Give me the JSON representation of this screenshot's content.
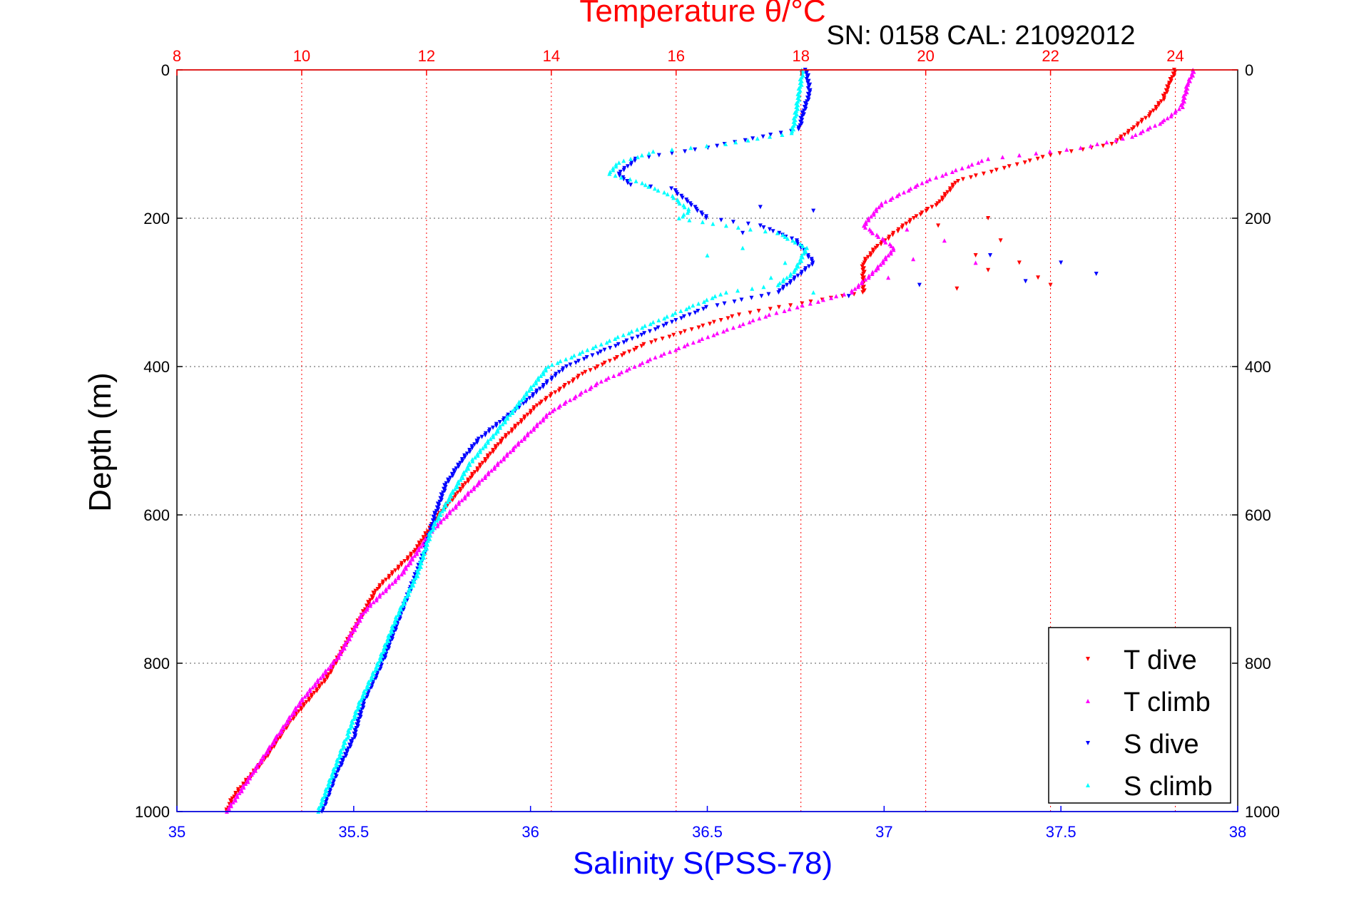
{
  "chart_data": {
    "type": "scatter",
    "title": "Temperature θ/°C",
    "subtitle": "SN: 0158  CAL: 21092012",
    "ylabel": "Depth (m)",
    "xlabel": "Salinity S(PSS-78)",
    "ylim": [
      1000,
      0
    ],
    "y_reversed": true,
    "y_ticks": [
      "0",
      "200",
      "400",
      "600",
      "800",
      "1000"
    ],
    "top_axis": {
      "label": "Temperature θ/°C",
      "range": [
        8,
        25
      ],
      "ticks": [
        "8",
        "10",
        "12",
        "14",
        "16",
        "18",
        "20",
        "22",
        "24"
      ],
      "color": "#ff0000"
    },
    "bottom_axis": {
      "label": "Salinity S(PSS-78)",
      "range": [
        35,
        38
      ],
      "ticks": [
        "35",
        "35.5",
        "36",
        "36.5",
        "37",
        "37.5",
        "38"
      ],
      "color": "#0000ff"
    },
    "grid": true,
    "legend_position": "bottom-right",
    "series": [
      {
        "name": "T dive",
        "axis": "temperature",
        "color": "#ff0000",
        "marker": "triangle-down",
        "points": [
          [
            24.0,
            0
          ],
          [
            23.9,
            20
          ],
          [
            23.8,
            40
          ],
          [
            23.6,
            60
          ],
          [
            23.3,
            80
          ],
          [
            23.0,
            100
          ],
          [
            22.0,
            115
          ],
          [
            20.5,
            150
          ],
          [
            20.2,
            180
          ],
          [
            19.8,
            200
          ],
          [
            19.5,
            220
          ],
          [
            19.2,
            240
          ],
          [
            19.0,
            260
          ],
          [
            19.0,
            300
          ],
          [
            17.0,
            330
          ],
          [
            15.5,
            370
          ],
          [
            14.5,
            410
          ],
          [
            13.8,
            450
          ],
          [
            13.2,
            500
          ],
          [
            12.7,
            550
          ],
          [
            12.2,
            600
          ],
          [
            11.8,
            650
          ],
          [
            11.2,
            700
          ],
          [
            10.8,
            760
          ],
          [
            10.4,
            820
          ],
          [
            9.8,
            880
          ],
          [
            9.4,
            930
          ],
          [
            8.9,
            980
          ],
          [
            8.8,
            1000
          ]
        ],
        "scatter": [
          [
            21.0,
            200
          ],
          [
            21.2,
            230
          ],
          [
            21.5,
            260
          ],
          [
            21.8,
            280
          ],
          [
            22.0,
            290
          ],
          [
            20.5,
            295
          ],
          [
            20.2,
            210
          ],
          [
            21.0,
            270
          ],
          [
            20.8,
            250
          ]
        ]
      },
      {
        "name": "T climb",
        "axis": "temperature",
        "color": "#ff00ff",
        "marker": "triangle-up",
        "points": [
          [
            24.3,
            0
          ],
          [
            24.2,
            20
          ],
          [
            24.1,
            50
          ],
          [
            23.8,
            70
          ],
          [
            23.3,
            90
          ],
          [
            22.5,
            105
          ],
          [
            21.0,
            120
          ],
          [
            20.0,
            150
          ],
          [
            19.3,
            180
          ],
          [
            19.0,
            210
          ],
          [
            19.5,
            240
          ],
          [
            19.2,
            270
          ],
          [
            18.8,
            300
          ],
          [
            17.5,
            330
          ],
          [
            16.5,
            360
          ],
          [
            15.6,
            390
          ],
          [
            14.8,
            420
          ],
          [
            14.0,
            460
          ],
          [
            13.4,
            510
          ],
          [
            12.8,
            560
          ],
          [
            12.1,
            620
          ],
          [
            11.6,
            680
          ],
          [
            11.0,
            730
          ],
          [
            10.6,
            790
          ],
          [
            10.0,
            850
          ],
          [
            9.6,
            900
          ],
          [
            9.2,
            950
          ],
          [
            8.8,
            1000
          ]
        ],
        "scatter": [
          [
            20.3,
            230
          ],
          [
            20.8,
            260
          ],
          [
            19.8,
            255
          ],
          [
            19.4,
            280
          ],
          [
            19.7,
            215
          ]
        ]
      },
      {
        "name": "S dive",
        "axis": "salinity",
        "color": "#0000ff",
        "marker": "triangle-down",
        "points": [
          [
            36.78,
            0
          ],
          [
            36.79,
            30
          ],
          [
            36.77,
            60
          ],
          [
            36.76,
            80
          ],
          [
            36.5,
            105
          ],
          [
            36.3,
            120
          ],
          [
            36.25,
            140
          ],
          [
            36.28,
            155
          ],
          [
            36.4,
            160
          ],
          [
            36.45,
            180
          ],
          [
            36.5,
            200
          ],
          [
            36.65,
            210
          ],
          [
            36.75,
            230
          ],
          [
            36.8,
            260
          ],
          [
            36.7,
            300
          ],
          [
            36.5,
            320
          ],
          [
            36.4,
            340
          ],
          [
            36.3,
            360
          ],
          [
            36.2,
            380
          ],
          [
            36.1,
            400
          ],
          [
            36.05,
            420
          ],
          [
            35.98,
            450
          ],
          [
            35.9,
            480
          ],
          [
            35.85,
            500
          ],
          [
            35.8,
            530
          ],
          [
            35.76,
            560
          ],
          [
            35.73,
            600
          ],
          [
            35.7,
            650
          ],
          [
            35.66,
            700
          ],
          [
            35.62,
            750
          ],
          [
            35.58,
            800
          ],
          [
            35.53,
            850
          ],
          [
            35.5,
            900
          ],
          [
            35.45,
            950
          ],
          [
            35.41,
            1000
          ]
        ],
        "scatter": [
          [
            36.65,
            185
          ],
          [
            36.8,
            190
          ],
          [
            36.6,
            220
          ],
          [
            37.3,
            250
          ],
          [
            37.5,
            260
          ],
          [
            37.6,
            275
          ],
          [
            37.4,
            285
          ],
          [
            37.1,
            290
          ],
          [
            36.9,
            305
          ]
        ]
      },
      {
        "name": "S climb",
        "axis": "salinity",
        "color": "#00ffff",
        "marker": "triangle-up",
        "points": [
          [
            36.77,
            0
          ],
          [
            36.76,
            30
          ],
          [
            36.75,
            60
          ],
          [
            36.74,
            85
          ],
          [
            36.55,
            100
          ],
          [
            36.35,
            110
          ],
          [
            36.25,
            125
          ],
          [
            36.22,
            140
          ],
          [
            36.3,
            150
          ],
          [
            36.4,
            170
          ],
          [
            36.45,
            190
          ],
          [
            36.42,
            200
          ],
          [
            36.55,
            210
          ],
          [
            36.7,
            220
          ],
          [
            36.78,
            240
          ],
          [
            36.75,
            270
          ],
          [
            36.7,
            290
          ],
          [
            36.55,
            300
          ],
          [
            36.45,
            320
          ],
          [
            36.3,
            350
          ],
          [
            36.15,
            380
          ],
          [
            36.05,
            400
          ],
          [
            36.0,
            430
          ],
          [
            35.95,
            460
          ],
          [
            35.9,
            490
          ],
          [
            35.83,
            530
          ],
          [
            35.78,
            570
          ],
          [
            35.72,
            620
          ],
          [
            35.68,
            680
          ],
          [
            35.62,
            740
          ],
          [
            35.57,
            800
          ],
          [
            35.52,
            850
          ],
          [
            35.48,
            900
          ],
          [
            35.44,
            950
          ],
          [
            35.4,
            1000
          ]
        ],
        "scatter": [
          [
            36.6,
            240
          ],
          [
            36.72,
            260
          ],
          [
            36.68,
            280
          ],
          [
            36.8,
            300
          ],
          [
            36.5,
            250
          ]
        ]
      }
    ]
  }
}
